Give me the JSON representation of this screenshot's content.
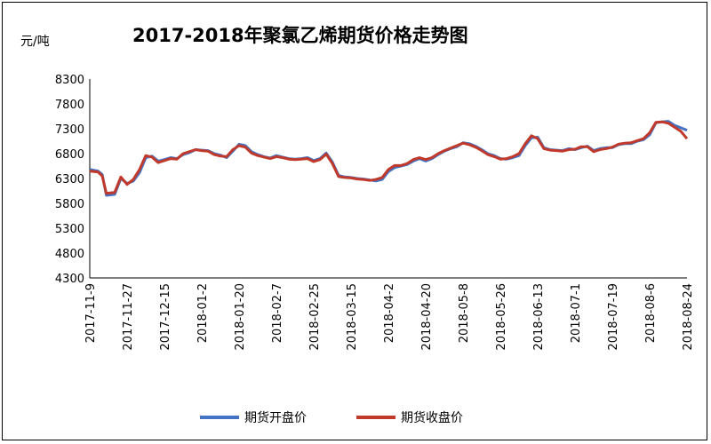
{
  "chart_data": {
    "type": "line",
    "title": "2017-2018年聚氯乙烯期货价格走势图",
    "ylabel": "元/吨",
    "xlabel": "",
    "ylim": [
      4300,
      8300
    ],
    "yticks": [
      4300,
      4800,
      5300,
      5800,
      6300,
      6800,
      7300,
      7800,
      8300
    ],
    "xtick_labels": [
      "2017-11-9",
      "2017-11-27",
      "2017-12-15",
      "2018-01-2",
      "2018-01-20",
      "2018-02-7",
      "2018-02-25",
      "2018-03-15",
      "2018-04-2",
      "2018-04-20",
      "2018-05-8",
      "2018-05-26",
      "2018-06-13",
      "2018-07-1",
      "2018-07-19",
      "2018-08-6",
      "2018-08-24"
    ],
    "x": [
      "2017-11-09",
      "2017-11-13",
      "2017-11-15",
      "2017-11-17",
      "2017-11-21",
      "2017-11-24",
      "2017-11-27",
      "2017-11-30",
      "2017-12-03",
      "2017-12-06",
      "2017-12-09",
      "2017-12-12",
      "2017-12-15",
      "2017-12-18",
      "2017-12-21",
      "2017-12-24",
      "2017-12-27",
      "2017-12-30",
      "2018-01-02",
      "2018-01-05",
      "2018-01-08",
      "2018-01-11",
      "2018-01-14",
      "2018-01-17",
      "2018-01-20",
      "2018-01-23",
      "2018-01-26",
      "2018-01-29",
      "2018-02-01",
      "2018-02-04",
      "2018-02-07",
      "2018-02-10",
      "2018-02-13",
      "2018-02-16",
      "2018-02-19",
      "2018-02-22",
      "2018-02-25",
      "2018-02-28",
      "2018-03-03",
      "2018-03-06",
      "2018-03-09",
      "2018-03-12",
      "2018-03-15",
      "2018-03-18",
      "2018-03-21",
      "2018-03-24",
      "2018-03-27",
      "2018-03-30",
      "2018-04-02",
      "2018-04-05",
      "2018-04-08",
      "2018-04-11",
      "2018-04-14",
      "2018-04-17",
      "2018-04-20",
      "2018-04-23",
      "2018-04-26",
      "2018-04-29",
      "2018-05-02",
      "2018-05-05",
      "2018-05-08",
      "2018-05-11",
      "2018-05-14",
      "2018-05-17",
      "2018-05-20",
      "2018-05-23",
      "2018-05-26",
      "2018-05-29",
      "2018-06-01",
      "2018-06-04",
      "2018-06-07",
      "2018-06-10",
      "2018-06-13",
      "2018-06-16",
      "2018-06-19",
      "2018-06-22",
      "2018-06-25",
      "2018-06-28",
      "2018-07-01",
      "2018-07-04",
      "2018-07-07",
      "2018-07-10",
      "2018-07-13",
      "2018-07-16",
      "2018-07-19",
      "2018-07-22",
      "2018-07-25",
      "2018-07-28",
      "2018-07-31",
      "2018-08-03",
      "2018-08-06",
      "2018-08-09",
      "2018-08-12",
      "2018-08-15",
      "2018-08-18",
      "2018-08-21",
      "2018-08-24"
    ],
    "series": [
      {
        "name": "期货开盘价",
        "color": "#4472c4",
        "values": [
          6480,
          6450,
          6380,
          5960,
          5980,
          6300,
          6200,
          6250,
          6420,
          6720,
          6750,
          6650,
          6680,
          6720,
          6700,
          6780,
          6820,
          6880,
          6870,
          6860,
          6800,
          6770,
          6720,
          6850,
          6990,
          6960,
          6840,
          6780,
          6740,
          6710,
          6760,
          6730,
          6700,
          6690,
          6700,
          6720,
          6660,
          6700,
          6810,
          6630,
          6360,
          6330,
          6320,
          6300,
          6290,
          6270,
          6250,
          6280,
          6440,
          6520,
          6550,
          6580,
          6650,
          6700,
          6650,
          6700,
          6780,
          6850,
          6900,
          6940,
          7020,
          7000,
          6950,
          6880,
          6800,
          6760,
          6700,
          6690,
          6720,
          6760,
          6960,
          7120,
          7130,
          6920,
          6880,
          6870,
          6860,
          6900,
          6880,
          6920,
          6950,
          6860,
          6900,
          6920,
          6920,
          6980,
          7000,
          7000,
          7050,
          7080,
          7180,
          7420,
          7440,
          7450,
          7370,
          7320,
          7270
        ]
      },
      {
        "name": "期货收盘价",
        "color": "#c0392b",
        "values": [
          6450,
          6430,
          6350,
          6000,
          6020,
          6330,
          6180,
          6280,
          6480,
          6760,
          6730,
          6620,
          6660,
          6700,
          6690,
          6800,
          6840,
          6880,
          6860,
          6850,
          6780,
          6750,
          6740,
          6880,
          6960,
          6930,
          6810,
          6760,
          6730,
          6700,
          6740,
          6720,
          6690,
          6680,
          6690,
          6700,
          6640,
          6680,
          6790,
          6600,
          6340,
          6320,
          6310,
          6290,
          6280,
          6260,
          6280,
          6320,
          6480,
          6560,
          6560,
          6600,
          6680,
          6720,
          6680,
          6720,
          6800,
          6860,
          6910,
          6960,
          7010,
          6980,
          6930,
          6860,
          6780,
          6740,
          6690,
          6700,
          6740,
          6800,
          7000,
          7160,
          7100,
          6900,
          6870,
          6860,
          6850,
          6880,
          6890,
          6940,
          6940,
          6840,
          6880,
          6900,
          6930,
          6990,
          7010,
          7020,
          7060,
          7100,
          7220,
          7430,
          7440,
          7410,
          7330,
          7250,
          7100
        ]
      }
    ],
    "legend": "bottom",
    "grid": false
  }
}
